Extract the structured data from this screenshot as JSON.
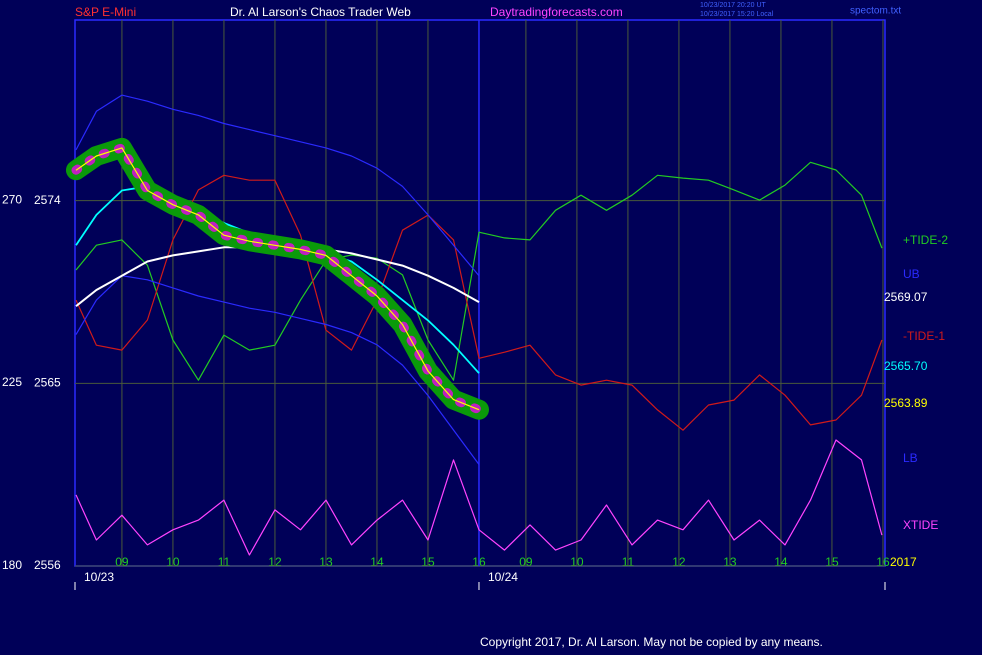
{
  "chart_data": {
    "type": "line",
    "title": "Dr. Al Larson's Chaos Trader Web",
    "subtitle": "S&P E-Mini",
    "site": "Daytradingforecasts.com",
    "timestamps": [
      "10/23/2017 20:20 UT",
      "10/23/2017 15:20 Local"
    ],
    "file": "spectom.txt",
    "copyright": "Copyright 2017, Dr. Al Larson. May not be copied by any means.",
    "date_labels": [
      "10/23",
      "10/24"
    ],
    "x": [
      8.1,
      8.5,
      9,
      9.5,
      10,
      10.5,
      11,
      11.5,
      12,
      12.5,
      13,
      13.5,
      14,
      14.5,
      15,
      15.5,
      16,
      16.5,
      17,
      17.5,
      18,
      18.5,
      19,
      19.5,
      20,
      20.5,
      21,
      21.5,
      22,
      22.5,
      23,
      23.5,
      23.9
    ],
    "xlim": [
      8.08,
      23.96
    ],
    "xticks": [
      {
        "value": 9,
        "label": "09"
      },
      10,
      11,
      12,
      13,
      14,
      15,
      16,
      {
        "value": 16.92,
        "label": "09"
      },
      {
        "value": 17.92,
        "label": "10"
      },
      {
        "value": 18.92,
        "label": "11"
      },
      {
        "value": 19.92,
        "label": "12"
      },
      {
        "value": 20.92,
        "label": "13"
      },
      {
        "value": 21.92,
        "label": "14"
      },
      {
        "value": 22.92,
        "label": "15"
      },
      {
        "value": 23.92,
        "label": "16"
      }
    ],
    "ylim": [
      2556,
      2582.9
    ],
    "yticks": [
      2556,
      2565,
      2574
    ],
    "y2lim": [
      180,
      314.3
    ],
    "y2ticks": [
      180,
      225,
      270
    ],
    "grid": true,
    "series": [
      {
        "color": "#ffff00",
        "values": [
          2575.5,
          2576.2,
          2576.6,
          2574.5,
          2573.8,
          2573.3,
          2572.3,
          2572.0,
          2571.8,
          2571.6,
          2571.3,
          2570.3,
          2569.3,
          2567.9,
          2565.6,
          2564.2,
          2563.7,
          null,
          null,
          null,
          null,
          null,
          null,
          null,
          null,
          null,
          null,
          null,
          null,
          null,
          null,
          null,
          null
        ]
      },
      {
        "color": "#00ffff",
        "values": [
          2571.8,
          2573.3,
          2574.5,
          2574.7,
          2574.1,
          2573.5,
          2572.9,
          2572.4,
          2572.0,
          2571.8,
          2571.4,
          2571.0,
          2570.1,
          2569.1,
          2568.1,
          2566.9,
          2565.5,
          null,
          null,
          null,
          null,
          null,
          null,
          null,
          null,
          null,
          null,
          null,
          null,
          null,
          null,
          null,
          null
        ]
      },
      {
        "color": "#ffffff",
        "values": [
          2568.8,
          2569.6,
          2570.3,
          2571.0,
          2571.3,
          2571.5,
          2571.7,
          2571.7,
          2571.7,
          2571.7,
          2571.6,
          2571.4,
          2571.1,
          2570.8,
          2570.3,
          2569.7,
          2569.0,
          null,
          null,
          null,
          null,
          null,
          null,
          null,
          null,
          null,
          null,
          null,
          null,
          null,
          null,
          null,
          null
        ]
      },
      {
        "name": "UB",
        "color": "#2a2aff",
        "values": [
          2576.5,
          2578.4,
          2579.2,
          2578.9,
          2578.5,
          2578.2,
          2577.8,
          2577.5,
          2577.2,
          2576.9,
          2576.6,
          2576.2,
          2575.6,
          2574.7,
          2573.3,
          2571.8,
          2570.3,
          null,
          null,
          null,
          null,
          null,
          null,
          null,
          null,
          null,
          null,
          null,
          null,
          null,
          null,
          null,
          null
        ]
      },
      {
        "name": "LB",
        "color": "#2a2aff",
        "values": [
          2567.4,
          2569.1,
          2570.3,
          2570.1,
          2569.7,
          2569.3,
          2569.0,
          2568.7,
          2568.5,
          2568.2,
          2567.9,
          2567.5,
          2566.9,
          2565.9,
          2564.4,
          2562.7,
          2561.0,
          null,
          null,
          null,
          null,
          null,
          null,
          null,
          null,
          null,
          null,
          null,
          null,
          null,
          null,
          null,
          null
        ]
      },
      {
        "name": "+TIDE-2",
        "color": "#22cc22",
        "axis": "y2",
        "values": [
          252.8,
          258.9,
          260.2,
          254.0,
          235.6,
          225.7,
          236.8,
          233.1,
          234.3,
          245.4,
          255.2,
          256.5,
          255.7,
          251.6,
          235.6,
          225.7,
          262.1,
          260.7,
          260.2,
          267.5,
          271.2,
          267.5,
          271.2,
          276.1,
          275.4,
          274.9,
          272.5,
          270.0,
          273.7,
          279.3,
          277.4,
          271.2,
          258.2
        ]
      },
      {
        "name": "-TIDE-1",
        "color": "#d01a1a",
        "axis": "y2",
        "values": [
          245.4,
          234.3,
          233.1,
          240.5,
          260.2,
          272.5,
          276.1,
          274.9,
          274.9,
          261.4,
          238.0,
          233.1,
          245.4,
          262.6,
          266.3,
          260.2,
          231.1,
          232.6,
          234.3,
          227.0,
          224.5,
          225.7,
          224.5,
          218.4,
          213.4,
          219.6,
          220.8,
          227.0,
          222.0,
          214.7,
          215.9,
          222.0,
          235.6
        ]
      },
      {
        "name": "XTIDE",
        "color": "#ff44ff",
        "axis": "y2",
        "values": [
          197.5,
          186.4,
          192.5,
          185.2,
          188.9,
          191.3,
          196.2,
          182.7,
          193.8,
          188.9,
          196.2,
          185.2,
          191.3,
          196.2,
          186.4,
          206.1,
          188.9,
          183.9,
          190.1,
          183.9,
          186.4,
          195.0,
          185.2,
          191.3,
          188.9,
          196.2,
          186.4,
          191.3,
          185.2,
          196.2,
          211.0,
          206.1,
          187.6
        ]
      }
    ],
    "annotations": [
      {
        "text": "2569.07",
        "color": "#ffffff"
      },
      {
        "text": "2565.70",
        "color": "#00ffff"
      },
      {
        "text": "2563.89",
        "color": "#ffff00"
      },
      {
        "text": "2017",
        "color": "#ffff00"
      }
    ]
  }
}
